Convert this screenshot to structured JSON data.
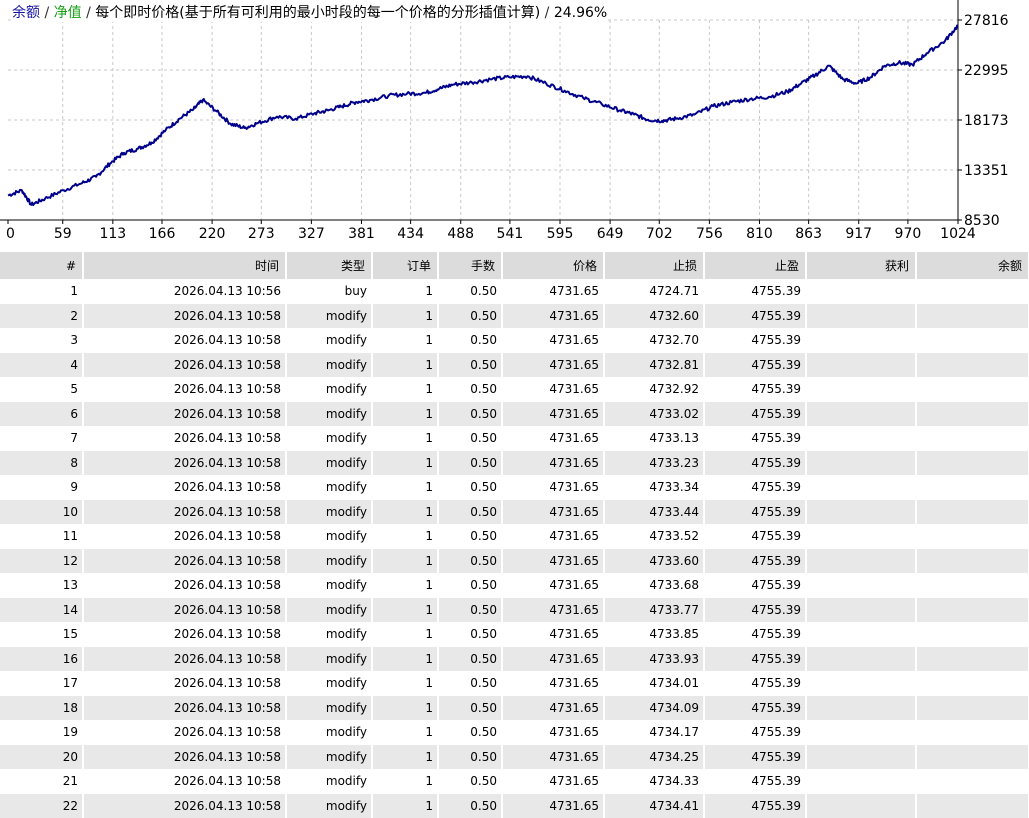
{
  "legend": {
    "balance": "余额",
    "equity": "净值",
    "desc": "每个即时价格(基于所有可利用的最小时段的每一个价格的分形插值计算)",
    "pct": "24.96%"
  },
  "chart_data": {
    "type": "line",
    "xlim": [
      0,
      1024
    ],
    "ylim": [
      8530,
      27816
    ],
    "xticks": [
      0,
      59,
      113,
      166,
      220,
      273,
      327,
      381,
      434,
      488,
      541,
      595,
      649,
      702,
      756,
      810,
      863,
      917,
      970,
      1024
    ],
    "yticks": [
      27816,
      22995,
      18173,
      13351,
      8530
    ],
    "grid": true,
    "line_color": "#00008b",
    "series": [
      {
        "x": [
          0,
          15,
          25,
          40,
          60,
          80,
          95,
          110,
          125,
          140,
          155,
          170,
          185,
          200,
          210,
          225,
          240,
          255,
          270,
          290,
          310,
          330,
          345,
          360,
          375,
          390,
          410,
          430,
          450,
          465,
          480,
          500,
          520,
          540,
          560,
          580,
          600,
          620,
          640,
          660,
          675,
          690,
          705,
          720,
          740,
          760,
          780,
          800,
          820,
          840,
          855,
          870,
          885,
          900,
          915,
          930,
          945,
          960,
          975,
          990,
          1010,
          1024
        ],
        "y": [
          10900,
          11400,
          10000,
          10600,
          11400,
          12100,
          12700,
          14000,
          15000,
          15400,
          16000,
          17200,
          18300,
          19200,
          20100,
          19000,
          17800,
          17400,
          17900,
          18500,
          18300,
          18800,
          19100,
          19500,
          19900,
          20100,
          20500,
          20700,
          20800,
          21200,
          21600,
          21800,
          22100,
          22300,
          22400,
          21700,
          21000,
          20300,
          19700,
          19100,
          18700,
          18200,
          18100,
          18300,
          18700,
          19500,
          19900,
          20200,
          20400,
          20900,
          21700,
          22500,
          23400,
          22100,
          21700,
          22300,
          23400,
          23700,
          23500,
          24600,
          25800,
          27300
        ]
      }
    ]
  },
  "table": {
    "headers": [
      "#",
      "时间",
      "类型",
      "订单",
      "手数",
      "价格",
      "止损",
      "止盈",
      "获利",
      "余额"
    ],
    "rows": [
      [
        "1",
        "2026.04.13 10:56",
        "buy",
        "1",
        "0.50",
        "4731.65",
        "4724.71",
        "4755.39",
        "",
        ""
      ],
      [
        "2",
        "2026.04.13 10:58",
        "modify",
        "1",
        "0.50",
        "4731.65",
        "4732.60",
        "4755.39",
        "",
        ""
      ],
      [
        "3",
        "2026.04.13 10:58",
        "modify",
        "1",
        "0.50",
        "4731.65",
        "4732.70",
        "4755.39",
        "",
        ""
      ],
      [
        "4",
        "2026.04.13 10:58",
        "modify",
        "1",
        "0.50",
        "4731.65",
        "4732.81",
        "4755.39",
        "",
        ""
      ],
      [
        "5",
        "2026.04.13 10:58",
        "modify",
        "1",
        "0.50",
        "4731.65",
        "4732.92",
        "4755.39",
        "",
        ""
      ],
      [
        "6",
        "2026.04.13 10:58",
        "modify",
        "1",
        "0.50",
        "4731.65",
        "4733.02",
        "4755.39",
        "",
        ""
      ],
      [
        "7",
        "2026.04.13 10:58",
        "modify",
        "1",
        "0.50",
        "4731.65",
        "4733.13",
        "4755.39",
        "",
        ""
      ],
      [
        "8",
        "2026.04.13 10:58",
        "modify",
        "1",
        "0.50",
        "4731.65",
        "4733.23",
        "4755.39",
        "",
        ""
      ],
      [
        "9",
        "2026.04.13 10:58",
        "modify",
        "1",
        "0.50",
        "4731.65",
        "4733.34",
        "4755.39",
        "",
        ""
      ],
      [
        "10",
        "2026.04.13 10:58",
        "modify",
        "1",
        "0.50",
        "4731.65",
        "4733.44",
        "4755.39",
        "",
        ""
      ],
      [
        "11",
        "2026.04.13 10:58",
        "modify",
        "1",
        "0.50",
        "4731.65",
        "4733.52",
        "4755.39",
        "",
        ""
      ],
      [
        "12",
        "2026.04.13 10:58",
        "modify",
        "1",
        "0.50",
        "4731.65",
        "4733.60",
        "4755.39",
        "",
        ""
      ],
      [
        "13",
        "2026.04.13 10:58",
        "modify",
        "1",
        "0.50",
        "4731.65",
        "4733.68",
        "4755.39",
        "",
        ""
      ],
      [
        "14",
        "2026.04.13 10:58",
        "modify",
        "1",
        "0.50",
        "4731.65",
        "4733.77",
        "4755.39",
        "",
        ""
      ],
      [
        "15",
        "2026.04.13 10:58",
        "modify",
        "1",
        "0.50",
        "4731.65",
        "4733.85",
        "4755.39",
        "",
        ""
      ],
      [
        "16",
        "2026.04.13 10:58",
        "modify",
        "1",
        "0.50",
        "4731.65",
        "4733.93",
        "4755.39",
        "",
        ""
      ],
      [
        "17",
        "2026.04.13 10:58",
        "modify",
        "1",
        "0.50",
        "4731.65",
        "4734.01",
        "4755.39",
        "",
        ""
      ],
      [
        "18",
        "2026.04.13 10:58",
        "modify",
        "1",
        "0.50",
        "4731.65",
        "4734.09",
        "4755.39",
        "",
        ""
      ],
      [
        "19",
        "2026.04.13 10:58",
        "modify",
        "1",
        "0.50",
        "4731.65",
        "4734.17",
        "4755.39",
        "",
        ""
      ],
      [
        "20",
        "2026.04.13 10:58",
        "modify",
        "1",
        "0.50",
        "4731.65",
        "4734.25",
        "4755.39",
        "",
        ""
      ],
      [
        "21",
        "2026.04.13 10:58",
        "modify",
        "1",
        "0.50",
        "4731.65",
        "4734.33",
        "4755.39",
        "",
        ""
      ],
      [
        "22",
        "2026.04.13 10:58",
        "modify",
        "1",
        "0.50",
        "4731.65",
        "4734.41",
        "4755.39",
        "",
        ""
      ]
    ]
  }
}
